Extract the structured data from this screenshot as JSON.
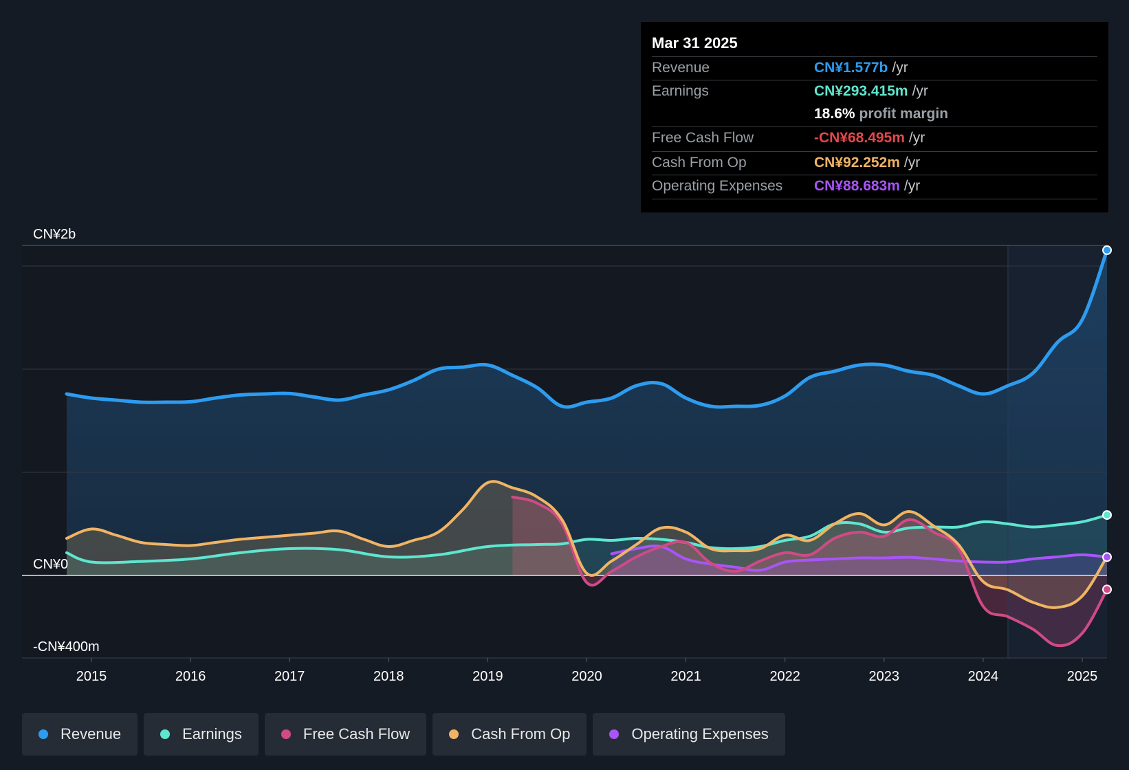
{
  "tooltip": {
    "date": "Mar 31 2025",
    "rows": [
      {
        "label": "Revenue",
        "value": "CN¥1.577b",
        "unit": "/yr",
        "color": "#2d9cf0"
      },
      {
        "label": "Earnings",
        "value": "CN¥293.415m",
        "unit": "/yr",
        "color": "#5ee6cf"
      },
      {
        "label": "",
        "margin_pct": "18.6%",
        "margin_label": "profit margin"
      },
      {
        "label": "Free Cash Flow",
        "value": "-CN¥68.495m",
        "unit": "/yr",
        "color": "#e5484d"
      },
      {
        "label": "Cash From Op",
        "value": "CN¥92.252m",
        "unit": "/yr",
        "color": "#f0b464"
      },
      {
        "label": "Operating Expenses",
        "value": "CN¥88.683m",
        "unit": "/yr",
        "color": "#a855f7"
      }
    ]
  },
  "legend": [
    {
      "label": "Revenue",
      "color": "#2d9cf0"
    },
    {
      "label": "Earnings",
      "color": "#5ee6cf"
    },
    {
      "label": "Free Cash Flow",
      "color": "#d04a86"
    },
    {
      "label": "Cash From Op",
      "color": "#f0b464"
    },
    {
      "label": "Operating Expenses",
      "color": "#a855f7"
    }
  ],
  "chart_data": {
    "type": "line",
    "title": "",
    "xlabel": "",
    "ylabel": "",
    "y_tick_labels": [
      "CN¥2b",
      "CN¥0",
      "-CN¥400m"
    ],
    "x_tick_labels": [
      "2015",
      "2016",
      "2017",
      "2018",
      "2019",
      "2020",
      "2021",
      "2022",
      "2023",
      "2024",
      "2025"
    ],
    "ylim": [
      -400,
      1600
    ],
    "xlim": [
      2014.7,
      2025.25
    ],
    "grid": true,
    "forecast_start": 2024.25,
    "series": [
      {
        "name": "Revenue",
        "color": "#2d9cf0",
        "x": [
          2014.75,
          2015.0,
          2015.25,
          2015.5,
          2015.75,
          2016.0,
          2016.25,
          2016.5,
          2016.75,
          2017.0,
          2017.25,
          2017.5,
          2017.75,
          2018.0,
          2018.25,
          2018.5,
          2018.75,
          2019.0,
          2019.25,
          2019.5,
          2019.75,
          2020.0,
          2020.25,
          2020.5,
          2020.75,
          2021.0,
          2021.25,
          2021.5,
          2021.75,
          2022.0,
          2022.25,
          2022.5,
          2022.75,
          2023.0,
          2023.25,
          2023.5,
          2023.75,
          2024.0,
          2024.25,
          2024.5,
          2024.75,
          2025.0,
          2025.25
        ],
        "values": [
          880,
          860,
          850,
          840,
          840,
          842,
          860,
          875,
          880,
          882,
          865,
          850,
          875,
          900,
          945,
          1000,
          1010,
          1020,
          970,
          910,
          820,
          840,
          860,
          920,
          930,
          860,
          820,
          820,
          825,
          870,
          960,
          990,
          1020,
          1020,
          990,
          970,
          920,
          880,
          920,
          980,
          1130,
          1240,
          1577
        ]
      },
      {
        "name": "Earnings",
        "color": "#5ee6cf",
        "x": [
          2014.75,
          2015.0,
          2015.5,
          2016.0,
          2016.5,
          2017.0,
          2017.5,
          2018.0,
          2018.5,
          2019.0,
          2019.5,
          2019.75,
          2020.0,
          2020.25,
          2020.5,
          2020.75,
          2021.0,
          2021.25,
          2021.5,
          2021.75,
          2022.0,
          2022.25,
          2022.5,
          2022.75,
          2023.0,
          2023.25,
          2023.5,
          2023.75,
          2024.0,
          2024.25,
          2024.5,
          2024.75,
          2025.0,
          2025.25
        ],
        "values": [
          110,
          65,
          68,
          80,
          110,
          130,
          125,
          90,
          100,
          140,
          150,
          153,
          175,
          170,
          180,
          175,
          160,
          135,
          130,
          140,
          170,
          190,
          250,
          250,
          210,
          230,
          235,
          235,
          260,
          250,
          235,
          245,
          260,
          293
        ]
      },
      {
        "name": "Free Cash Flow",
        "color": "#d04a86",
        "x": [
          2019.25,
          2019.5,
          2019.75,
          2020.0,
          2020.25,
          2020.5,
          2020.75,
          2021.0,
          2021.25,
          2021.5,
          2021.75,
          2022.0,
          2022.25,
          2022.5,
          2022.75,
          2023.0,
          2023.25,
          2023.5,
          2023.75,
          2024.0,
          2024.25,
          2024.5,
          2024.75,
          2025.0,
          2025.25
        ],
        "values": [
          380,
          350,
          250,
          -35,
          20,
          90,
          140,
          160,
          60,
          20,
          70,
          110,
          100,
          180,
          210,
          190,
          270,
          210,
          130,
          -150,
          -200,
          -260,
          -340,
          -280,
          -68
        ]
      },
      {
        "name": "Cash From Op",
        "color": "#f0b464",
        "x": [
          2014.75,
          2015.0,
          2015.25,
          2015.5,
          2015.75,
          2016.0,
          2016.25,
          2016.5,
          2016.75,
          2017.0,
          2017.25,
          2017.5,
          2017.75,
          2018.0,
          2018.25,
          2018.5,
          2018.75,
          2019.0,
          2019.25,
          2019.5,
          2019.75,
          2020.0,
          2020.25,
          2020.5,
          2020.75,
          2021.0,
          2021.25,
          2021.5,
          2021.75,
          2022.0,
          2022.25,
          2022.5,
          2022.75,
          2023.0,
          2023.25,
          2023.5,
          2023.75,
          2024.0,
          2024.25,
          2024.5,
          2024.75,
          2025.0,
          2025.25
        ],
        "values": [
          180,
          225,
          195,
          160,
          150,
          145,
          160,
          175,
          185,
          195,
          205,
          215,
          175,
          140,
          170,
          210,
          320,
          450,
          425,
          380,
          270,
          10,
          70,
          150,
          230,
          210,
          130,
          120,
          130,
          195,
          170,
          250,
          300,
          245,
          310,
          240,
          150,
          -30,
          -70,
          -130,
          -155,
          -100,
          92
        ]
      },
      {
        "name": "Operating Expenses",
        "color": "#a855f7",
        "x": [
          2020.25,
          2020.5,
          2020.75,
          2021.0,
          2021.25,
          2021.5,
          2021.75,
          2022.0,
          2022.25,
          2022.5,
          2022.75,
          2023.0,
          2023.25,
          2023.5,
          2023.75,
          2024.0,
          2024.25,
          2024.5,
          2024.75,
          2025.0,
          2025.25
        ],
        "values": [
          105,
          130,
          140,
          80,
          55,
          40,
          25,
          65,
          75,
          80,
          85,
          85,
          88,
          80,
          70,
          65,
          65,
          80,
          90,
          100,
          89
        ]
      }
    ]
  }
}
